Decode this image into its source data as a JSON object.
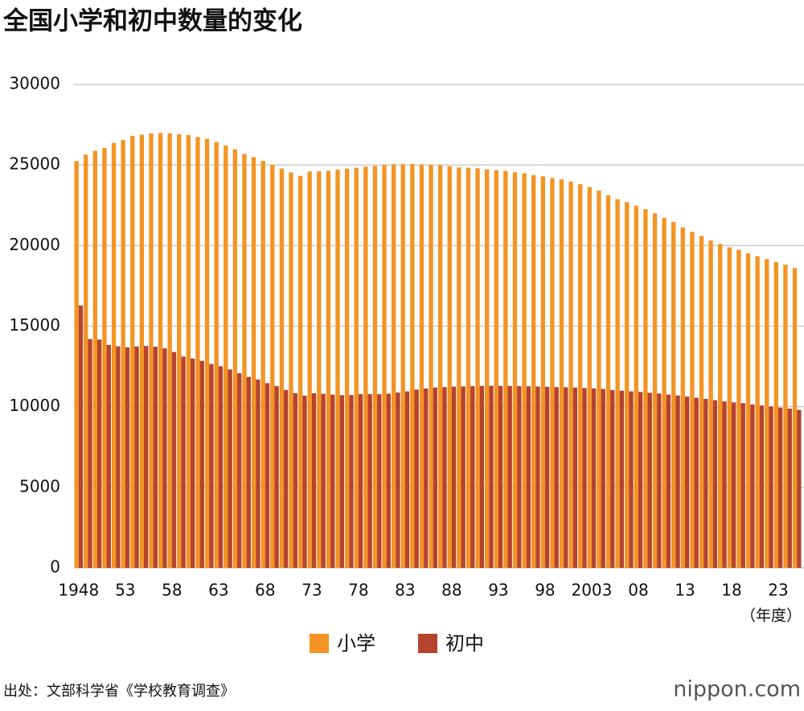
{
  "chart_data": {
    "type": "bar",
    "title": "全国小学和初中数量的变化",
    "categories": [
      "1948",
      null,
      null,
      null,
      null,
      "53",
      null,
      null,
      null,
      null,
      "58",
      null,
      null,
      null,
      null,
      "63",
      null,
      null,
      null,
      null,
      "68",
      null,
      null,
      null,
      null,
      "73",
      null,
      null,
      null,
      null,
      "78",
      null,
      null,
      null,
      null,
      "83",
      null,
      null,
      null,
      null,
      "88",
      null,
      null,
      null,
      null,
      "93",
      null,
      null,
      null,
      null,
      "98",
      null,
      null,
      null,
      null,
      "2003",
      null,
      null,
      null,
      null,
      "08",
      null,
      null,
      null,
      null,
      "13",
      null,
      null,
      null,
      null,
      "18",
      null,
      null,
      null,
      null,
      "23",
      null,
      null
    ],
    "series": [
      {
        "name": "小学",
        "color": "#f39424",
        "values": [
          25237,
          25638,
          25878,
          26056,
          26377,
          26555,
          26804,
          26880,
          26957,
          26988,
          26964,
          26916,
          26858,
          26741,
          26615,
          26423,
          26210,
          25977,
          25687,
          25487,
          25262,
          25013,
          24790,
          24540,
          24325,
          24592,
          24606,
          24650,
          24717,
          24777,
          24828,
          24899,
          24945,
          25005,
          25043,
          25045,
          25064,
          25040,
          25010,
          24982,
          24928,
          24851,
          24827,
          24798,
          24730,
          24676,
          24635,
          24548,
          24482,
          24376,
          24295,
          24188,
          24106,
          23964,
          23808,
          23633,
          23420,
          23123,
          22878,
          22693,
          22476,
          22258,
          22000,
          21721,
          21460,
          21131,
          20852,
          20601,
          20313,
          20095,
          19892,
          19738,
          19525,
          19336,
          19161,
          18980,
          18822,
          18600
        ]
      },
      {
        "name": "初中",
        "color": "#b5432e",
        "values": [
          16285,
          14200,
          14165,
          13836,
          13748,
          13685,
          13734,
          13767,
          13724,
          13622,
          13392,
          13112,
          12986,
          12849,
          12647,
          12512,
          12310,
          12079,
          11851,
          11684,
          11463,
          11278,
          11040,
          10839,
          10686,
          10836,
          10802,
          10751,
          10719,
          10723,
          10778,
          10780,
          10780,
          10810,
          10879,
          10950,
          11062,
          11131,
          11190,
          11219,
          11246,
          11264,
          11275,
          11290,
          11300,
          11292,
          11289,
          11274,
          11269,
          11257,
          11236,
          11220,
          11209,
          11191,
          11159,
          11134,
          11102,
          11035,
          10992,
          10955,
          10915,
          10864,
          10815,
          10751,
          10699,
          10628,
          10557,
          10484,
          10404,
          10325,
          10270,
          10222,
          10142,
          10076,
          10012,
          9944,
          9882,
          9800
        ]
      }
    ],
    "ylim": [
      0,
      30000
    ],
    "yticks": [
      0,
      5000,
      10000,
      15000,
      20000,
      25000,
      30000
    ],
    "grid": true,
    "x_unit": "（年度）",
    "source": "出处：文部科学省《学校教育调查》",
    "brand": "nippon.com"
  }
}
